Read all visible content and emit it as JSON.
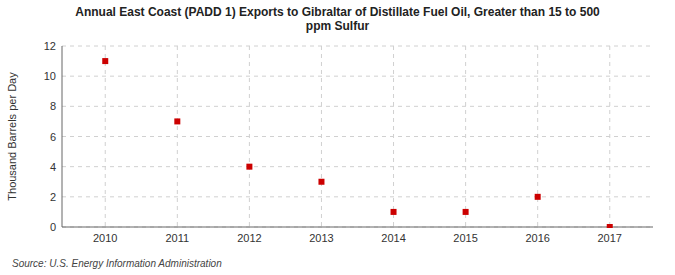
{
  "chart_data": {
    "type": "scatter",
    "title": "Annual East Coast (PADD 1) Exports to Gibraltar of Distillate Fuel Oil, Greater than 15 to 500\nppm Sulfur",
    "ylabel": "Thousand Barrels per Day",
    "annotations": [
      "Source: U.S. Energy Information Administration"
    ],
    "x": [
      2010,
      2011,
      2012,
      2013,
      2014,
      2015,
      2016,
      2017
    ],
    "values": [
      11,
      7,
      4,
      3,
      1,
      1,
      2,
      0
    ],
    "color": "#cc0000",
    "marker": "square",
    "xlim": [
      2009.4,
      2017.6
    ],
    "xticks": [
      2010,
      2011,
      2012,
      2013,
      2014,
      2015,
      2016,
      2017
    ],
    "ylim": [
      0,
      12
    ],
    "yticks": [
      0,
      2,
      4,
      6,
      8,
      10,
      12
    ],
    "grid": true
  }
}
